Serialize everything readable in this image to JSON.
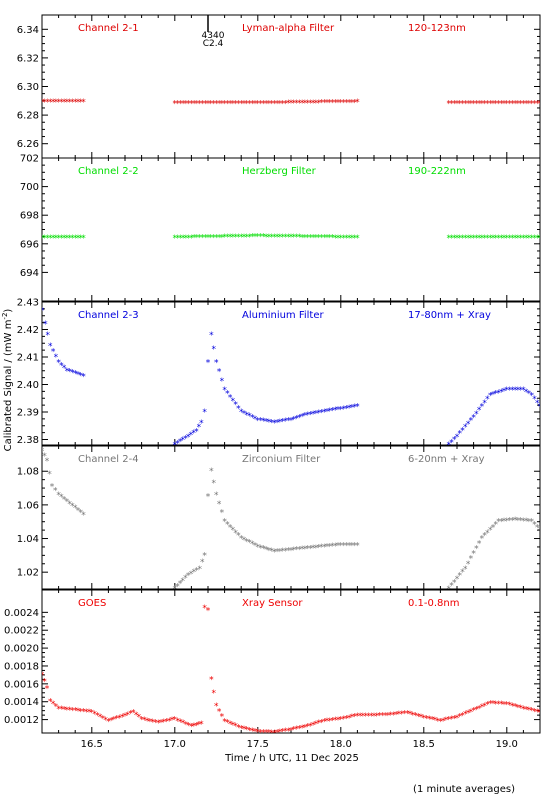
{
  "figure": {
    "ylabel": "Calibrated Signal / (mW m",
    "ylabel_sup": "-2",
    "ylabel_end": ")",
    "xlabel": "Time / h UTC, 11 Dec 2025",
    "footnote": "(1 minute averages)",
    "marker_label": "4340",
    "marker_sublabel": "C2.4"
  },
  "chart_data": [
    {
      "type": "scatter",
      "labels": [
        "Channel 2-1",
        "Lyman-alpha Filter",
        "120-123nm"
      ],
      "color": "#dd0000",
      "xlim": [
        16.2,
        19.2
      ],
      "ylim": [
        6.25,
        6.35
      ],
      "yticks": [
        6.26,
        6.28,
        6.3,
        6.32,
        6.34
      ],
      "ytick_labels": [
        "6.26",
        "6.28",
        "6.30",
        "6.32",
        "6.34"
      ],
      "segments": [
        {
          "points": [
            [
              16.2,
              6.289
            ],
            [
              16.45,
              6.289
            ]
          ]
        },
        {
          "points": [
            [
              17.0,
              6.288
            ],
            [
              17.5,
              6.288
            ],
            [
              18.1,
              6.289
            ]
          ]
        },
        {
          "points": [
            [
              18.65,
              6.288
            ],
            [
              19.2,
              6.288
            ]
          ]
        }
      ]
    },
    {
      "type": "scatter",
      "labels": [
        "Channel 2-2",
        "Herzberg Filter",
        "190-222nm"
      ],
      "color": "#00dd00",
      "xlim": [
        16.2,
        19.2
      ],
      "ylim": [
        692,
        702
      ],
      "yticks": [
        694,
        696,
        698,
        700,
        702
      ],
      "ytick_labels": [
        "694",
        "696",
        "698",
        "700",
        "702"
      ],
      "segments": [
        {
          "points": [
            [
              16.2,
              696.4
            ],
            [
              16.45,
              696.4
            ]
          ]
        },
        {
          "points": [
            [
              17.0,
              696.4
            ],
            [
              17.5,
              696.5
            ],
            [
              18.1,
              696.4
            ]
          ]
        },
        {
          "points": [
            [
              18.65,
              696.4
            ],
            [
              19.2,
              696.4
            ]
          ]
        }
      ]
    },
    {
      "type": "scatter",
      "labels": [
        "Channel 2-3",
        "Aluminium Filter",
        "17-80nm + Xray"
      ],
      "color": "#0000dd",
      "xlim": [
        16.2,
        19.2
      ],
      "ylim": [
        2.378,
        2.43
      ],
      "yticks": [
        2.38,
        2.39,
        2.4,
        2.41,
        2.42,
        2.43
      ],
      "ytick_labels": [
        "2.38",
        "2.39",
        "2.40",
        "2.41",
        "2.42",
        "2.43"
      ],
      "segments": [
        {
          "points": [
            [
              16.2,
              2.427
            ],
            [
              16.22,
              2.422
            ],
            [
              16.25,
              2.414
            ],
            [
              16.3,
              2.408
            ],
            [
              16.35,
              2.405
            ],
            [
              16.45,
              2.403
            ]
          ]
        },
        {
          "points": [
            [
              17.0,
              2.378
            ],
            [
              17.08,
              2.381
            ],
            [
              17.13,
              2.383
            ],
            [
              17.16,
              2.386
            ],
            [
              17.18,
              2.39
            ],
            [
              17.2,
              2.408
            ],
            [
              17.22,
              2.418
            ],
            [
              17.25,
              2.408
            ],
            [
              17.3,
              2.398
            ],
            [
              17.4,
              2.39
            ],
            [
              17.5,
              2.387
            ],
            [
              17.6,
              2.386
            ],
            [
              17.7,
              2.387
            ],
            [
              17.8,
              2.389
            ],
            [
              17.9,
              2.39
            ],
            [
              18.0,
              2.391
            ],
            [
              18.1,
              2.392
            ]
          ]
        },
        {
          "points": [
            [
              18.65,
              2.378
            ],
            [
              18.7,
              2.381
            ],
            [
              18.8,
              2.388
            ],
            [
              18.9,
              2.396
            ],
            [
              19.0,
              2.398
            ],
            [
              19.1,
              2.398
            ],
            [
              19.15,
              2.396
            ],
            [
              19.2,
              2.392
            ]
          ]
        }
      ]
    },
    {
      "type": "scatter",
      "labels": [
        "Channel 2-4",
        "Zirconium Filter",
        "6-20nm + Xray"
      ],
      "color": "#777777",
      "xlim": [
        16.2,
        19.2
      ],
      "ylim": [
        1.01,
        1.095
      ],
      "yticks": [
        1.02,
        1.04,
        1.06,
        1.08
      ],
      "ytick_labels": [
        "1.02",
        "1.04",
        "1.06",
        "1.08"
      ],
      "segments": [
        {
          "points": [
            [
              16.2,
              1.092
            ],
            [
              16.23,
              1.086
            ],
            [
              16.26,
              1.071
            ],
            [
              16.3,
              1.066
            ],
            [
              16.35,
              1.062
            ],
            [
              16.45,
              1.054
            ]
          ]
        },
        {
          "points": [
            [
              17.0,
              1.01
            ],
            [
              17.08,
              1.018
            ],
            [
              17.15,
              1.022
            ],
            [
              17.18,
              1.03
            ],
            [
              17.2,
              1.065
            ],
            [
              17.22,
              1.08
            ],
            [
              17.25,
              1.066
            ],
            [
              17.3,
              1.05
            ],
            [
              17.4,
              1.04
            ],
            [
              17.5,
              1.035
            ],
            [
              17.6,
              1.032
            ],
            [
              17.7,
              1.033
            ],
            [
              17.8,
              1.034
            ],
            [
              17.9,
              1.035
            ],
            [
              18.0,
              1.036
            ],
            [
              18.1,
              1.036
            ]
          ]
        },
        {
          "points": [
            [
              18.65,
              1.01
            ],
            [
              18.75,
              1.022
            ],
            [
              18.85,
              1.04
            ],
            [
              18.95,
              1.05
            ],
            [
              19.05,
              1.051
            ],
            [
              19.15,
              1.05
            ],
            [
              19.2,
              1.045
            ]
          ]
        }
      ]
    },
    {
      "type": "scatter",
      "labels": [
        "GOES",
        "Xray Sensor",
        "0.1-0.8nm"
      ],
      "color": "#ee0000",
      "xlim": [
        16.2,
        19.2
      ],
      "ylim": [
        0.00105,
        0.00265
      ],
      "yticks": [
        0.0012,
        0.0014,
        0.0016,
        0.0018,
        0.002,
        0.0022,
        0.0024
      ],
      "ytick_labels": [
        "0.0012",
        "0.0014",
        "0.0016",
        "0.0018",
        "0.0020",
        "0.0022",
        "0.0024"
      ],
      "xticks": [
        16.5,
        17.0,
        17.5,
        18.0,
        18.5,
        19.0
      ],
      "xtick_labels": [
        "16.5",
        "17.0",
        "17.5",
        "18.0",
        "18.5",
        "19.0"
      ],
      "segments": [
        {
          "points": [
            [
              16.2,
              0.0017
            ],
            [
              16.23,
              0.00155
            ],
            [
              16.25,
              0.0014
            ],
            [
              16.3,
              0.00132
            ],
            [
              16.4,
              0.0013
            ],
            [
              16.5,
              0.00128
            ],
            [
              16.6,
              0.00118
            ],
            [
              16.7,
              0.00124
            ],
            [
              16.75,
              0.00128
            ],
            [
              16.8,
              0.0012
            ],
            [
              16.9,
              0.00116
            ],
            [
              17.0,
              0.0012
            ],
            [
              17.1,
              0.00112
            ],
            [
              17.16,
              0.00115
            ],
            [
              17.18,
              0.00245
            ],
            [
              17.2,
              0.00242
            ],
            [
              17.22,
              0.00165
            ],
            [
              17.25,
              0.00135
            ],
            [
              17.3,
              0.00118
            ],
            [
              17.4,
              0.0011
            ],
            [
              17.5,
              0.00106
            ],
            [
              17.6,
              0.00105
            ],
            [
              17.7,
              0.00108
            ],
            [
              17.8,
              0.00112
            ],
            [
              17.9,
              0.00118
            ],
            [
              18.0,
              0.0012
            ],
            [
              18.1,
              0.00124
            ],
            [
              18.2,
              0.00124
            ],
            [
              18.3,
              0.00125
            ],
            [
              18.4,
              0.00127
            ],
            [
              18.5,
              0.00122
            ],
            [
              18.6,
              0.00118
            ],
            [
              18.7,
              0.00122
            ],
            [
              18.8,
              0.0013
            ],
            [
              18.9,
              0.00138
            ],
            [
              19.0,
              0.00137
            ],
            [
              19.1,
              0.00132
            ],
            [
              19.2,
              0.00128
            ]
          ]
        }
      ]
    }
  ]
}
